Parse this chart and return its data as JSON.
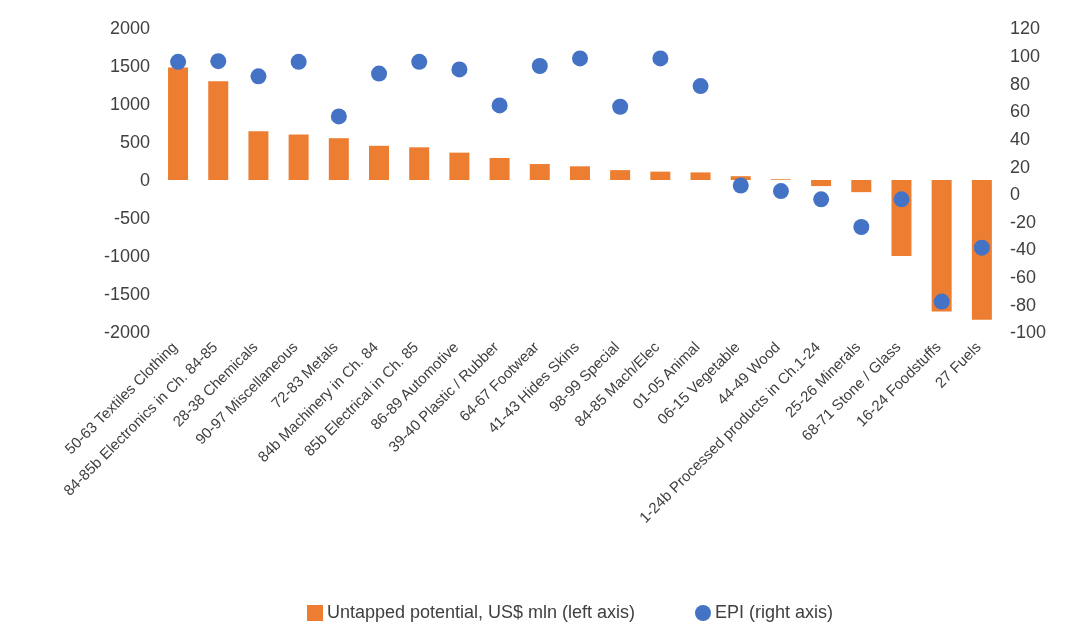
{
  "chart_data": {
    "type": "bar",
    "categories": [
      "50-63 Textiles Clothing",
      "84-85b Electronics in Ch. 84-85",
      "28-38 Chemicals",
      "90-97 Miscellaneous",
      "72-83 Metals",
      "84b Machinery in Ch. 84",
      "85b Electrical in Ch. 85",
      "86-89 Automotive",
      "39-40 Plastic / Rubber",
      "64-67 Footwear",
      "41-43 Hides Skins",
      "98-99 Special",
      "84-85 Mach/Elec",
      "01-05 Animal",
      "06-15 Vegetable",
      "44-49 Wood",
      "1-24b Processed products in Ch.1-24",
      "25-26 Minerals",
      "68-71 Stone / Glass",
      "16-24 Foodstuffs",
      "27 Fuels"
    ],
    "series": [
      {
        "name": "Untapped potential, US$ mln (left axis)",
        "type": "bar",
        "color": "#ed7d31",
        "values": [
          1480,
          1300,
          640,
          600,
          550,
          450,
          430,
          360,
          290,
          210,
          180,
          130,
          110,
          100,
          50,
          10,
          -80,
          -160,
          -1000,
          -1730,
          -1840
        ]
      },
      {
        "name": "EPI (right axis)",
        "type": "scatter",
        "axis": "y2",
        "color": "#4472c4",
        "values": [
          95.5,
          96,
          85,
          95.5,
          56,
          87,
          95.5,
          90,
          64,
          92.5,
          98,
          63,
          98,
          78,
          6,
          2,
          -4,
          -24,
          -4,
          -78,
          -39
        ]
      }
    ],
    "ylim": [
      -2000,
      2000
    ],
    "yticks": [
      -2000,
      -1500,
      -1000,
      -500,
      0,
      500,
      1000,
      1500,
      2000
    ],
    "y2lim": [
      -100,
      120
    ],
    "y2ticks": [
      -100,
      -80,
      -60,
      -40,
      -20,
      0,
      20,
      40,
      60,
      80,
      100,
      120
    ],
    "grid": false,
    "legend": "bottom",
    "marker": "circle"
  }
}
